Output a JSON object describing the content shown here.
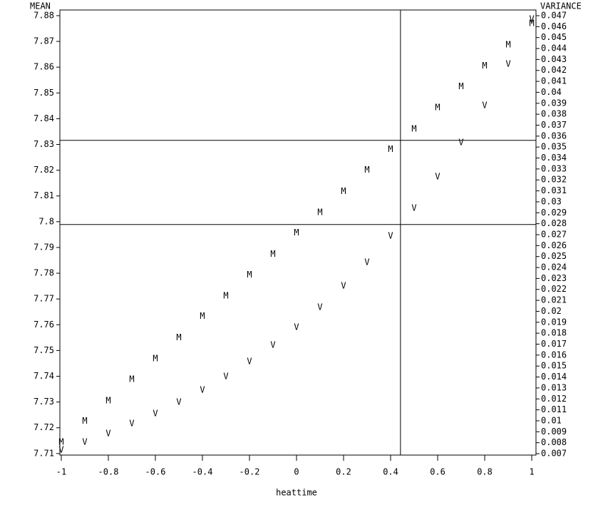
{
  "chart_data": {
    "type": "scatter",
    "ylabel": "MEAN",
    "y2label": "VARIANCE",
    "xlabel": "heattime",
    "x": [
      -1,
      -0.9,
      -0.8,
      -0.7,
      -0.6,
      -0.5,
      -0.4,
      -0.3,
      -0.2,
      -0.1,
      0,
      0.1,
      0.2,
      0.3,
      0.4,
      0.5,
      0.6,
      0.7,
      0.8,
      0.9,
      1
    ],
    "series": [
      {
        "name": "M",
        "color": "#000000",
        "values": [
          7.7144,
          7.7225,
          7.7305,
          7.7388,
          7.7468,
          7.7549,
          7.7632,
          7.7712,
          7.7793,
          7.7873,
          7.7956,
          7.8036,
          7.8117,
          7.82,
          7.828,
          7.836,
          7.8443,
          7.8524,
          7.8604,
          7.8687,
          7.877
        ]
      },
      {
        "name": "V",
        "color": "#000000",
        "axis": "y2",
        "values": [
          0.00733,
          0.00804,
          0.00882,
          0.00974,
          0.01065,
          0.01169,
          0.0128,
          0.01404,
          0.0154,
          0.0169,
          0.01853,
          0.02036,
          0.02231,
          0.02446,
          0.02687,
          0.02941,
          0.03228,
          0.0354,
          0.03879,
          0.04257,
          0.04667
        ]
      }
    ],
    "xlim": [
      -1.006,
      1.018
    ],
    "xticks": [
      -1,
      -0.8,
      -0.6,
      -0.4,
      -0.2,
      0,
      0.2,
      0.4,
      0.6,
      0.8,
      1
    ],
    "ylim": [
      7.7094,
      7.8822
    ],
    "yticks": [
      7.71,
      7.72,
      7.73,
      7.74,
      7.75,
      7.76,
      7.77,
      7.78,
      7.79,
      7.8,
      7.81,
      7.82,
      7.83,
      7.84,
      7.85,
      7.86,
      7.87,
      7.88
    ],
    "y2lim": [
      0.00687,
      0.04752
    ],
    "y2ticks": [
      0.007,
      0.008,
      0.009,
      0.01,
      0.011,
      0.012,
      0.013,
      0.014,
      0.015,
      0.016,
      0.017,
      0.018,
      0.019,
      0.02,
      0.021,
      0.022,
      0.023,
      0.024,
      0.025,
      0.026,
      0.027,
      0.028,
      0.029,
      0.03,
      0.031,
      0.032,
      0.033,
      0.034,
      0.035,
      0.036,
      0.037,
      0.038,
      0.039,
      0.04,
      0.041,
      0.042,
      0.043,
      0.044,
      0.045,
      0.046,
      0.047
    ],
    "href": [
      7.8316,
      7.7989
    ],
    "vref": [
      0.442
    ]
  }
}
